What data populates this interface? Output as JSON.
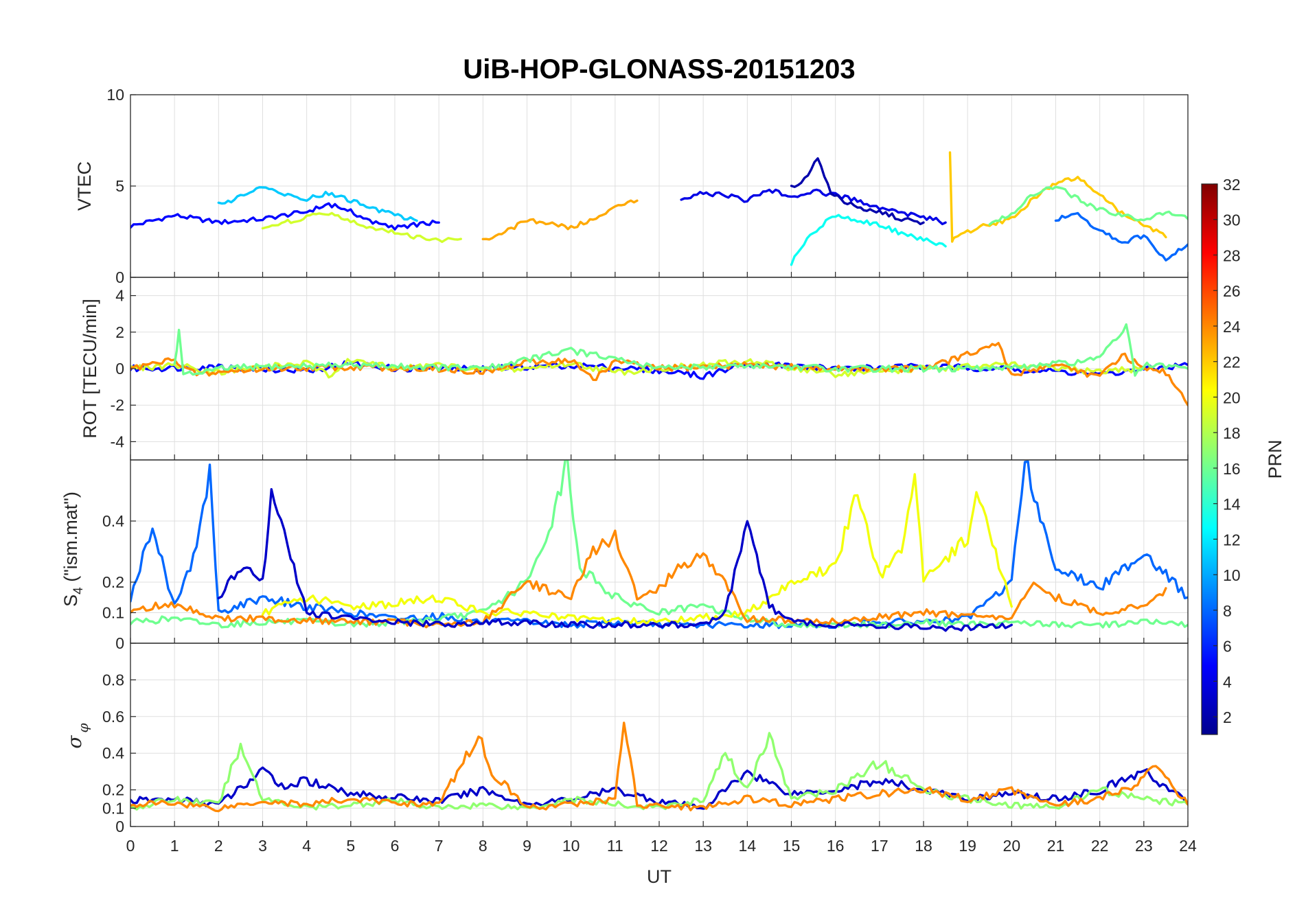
{
  "chart_data": {
    "type": "line",
    "title": "UiB-HOP-GLONASS-20151203",
    "xlabel": "UT",
    "xlim": [
      0,
      24
    ],
    "xticks": [
      "0",
      "1",
      "2",
      "3",
      "4",
      "5",
      "6",
      "7",
      "8",
      "9",
      "10",
      "11",
      "12",
      "13",
      "14",
      "15",
      "16",
      "17",
      "18",
      "19",
      "20",
      "21",
      "22",
      "23",
      "24"
    ],
    "grid": true,
    "colorbar": {
      "label": "PRN",
      "range": [
        1,
        32
      ],
      "ticks": [
        "2",
        "4",
        "6",
        "8",
        "10",
        "12",
        "14",
        "16",
        "18",
        "20",
        "22",
        "24",
        "26",
        "28",
        "30",
        "32"
      ],
      "placement": "right"
    },
    "panels": [
      {
        "id": "vtec",
        "ylabel": "VTEC",
        "ylim": [
          0,
          10
        ],
        "yticks": [
          "0",
          "5",
          "10"
        ],
        "series": [
          {
            "prn": 5,
            "t": [
              0,
              1,
              2,
              3,
              4,
              4.5,
              5,
              5.5,
              6,
              6.5,
              7
            ],
            "y": [
              2.8,
              3.4,
              3.0,
              3.2,
              3.6,
              4.0,
              3.6,
              3.0,
              2.7,
              2.9,
              3.0
            ]
          },
          {
            "prn": 11,
            "t": [
              2,
              2.5,
              3,
              3.5,
              4,
              4.5,
              5,
              5.5,
              6,
              6.5
            ],
            "y": [
              4.0,
              4.4,
              4.9,
              4.6,
              4.3,
              4.6,
              4.2,
              3.8,
              3.4,
              3.1
            ]
          },
          {
            "prn": 19,
            "t": [
              3,
              3.5,
              4,
              4.5,
              5,
              5.5,
              6,
              6.5,
              7,
              7.5
            ],
            "y": [
              2.6,
              3.0,
              3.3,
              3.5,
              3.1,
              2.7,
              2.5,
              2.2,
              2.0,
              2.1
            ]
          },
          {
            "prn": 23,
            "t": [
              8,
              8.5,
              9,
              9.5,
              10,
              10.5,
              11,
              11.5
            ],
            "y": [
              2.0,
              2.5,
              3.1,
              3.0,
              2.7,
              3.2,
              3.8,
              4.2
            ]
          },
          {
            "prn": 4,
            "t": [
              12.5,
              13,
              13.5,
              14,
              14.5,
              15,
              15.5,
              16,
              16.5,
              17,
              17.5,
              18,
              18.5
            ],
            "y": [
              4.3,
              4.6,
              4.5,
              4.2,
              4.8,
              4.4,
              4.7,
              4.5,
              4.2,
              3.8,
              3.5,
              3.3,
              3.0
            ]
          },
          {
            "prn": 2,
            "t": [
              15,
              15.3,
              15.6,
              15.9,
              16.2,
              16.5,
              17,
              17.5,
              18
            ],
            "y": [
              4.9,
              5.4,
              6.5,
              4.6,
              4.2,
              3.8,
              3.6,
              3.2,
              3.0
            ]
          },
          {
            "prn": 13,
            "t": [
              15,
              15.5,
              16,
              16.5,
              17,
              17.5,
              18,
              18.5
            ],
            "y": [
              0.8,
              2.5,
              3.4,
              3.1,
              2.9,
              2.4,
              2.1,
              1.7
            ]
          },
          {
            "prn": 22,
            "t": [
              18.6,
              18.65,
              18.7,
              19,
              19.5,
              20,
              20.5,
              21,
              21.5,
              22,
              22.5,
              23,
              23.5
            ],
            "y": [
              6.8,
              2.0,
              2.2,
              2.5,
              2.9,
              3.2,
              4.3,
              5.2,
              5.5,
              4.5,
              3.5,
              2.9,
              2.2
            ]
          },
          {
            "prn": 16,
            "t": [
              19.5,
              20,
              20.5,
              21,
              21.5,
              22,
              22.5,
              23,
              23.5,
              24
            ],
            "y": [
              3.0,
              3.5,
              4.6,
              5.0,
              4.3,
              3.7,
              3.4,
              3.1,
              3.6,
              3.2
            ]
          },
          {
            "prn": 8,
            "t": [
              21,
              21.5,
              22,
              22.5,
              23,
              23.5,
              24
            ],
            "y": [
              3.2,
              3.4,
              2.6,
              1.9,
              2.3,
              1.0,
              1.8
            ]
          }
        ]
      },
      {
        "id": "rot",
        "ylabel": "ROT [TECU/min]",
        "ylim": [
          -5,
          5
        ],
        "yticks": [
          "-4",
          "-2",
          "0",
          "2",
          "4"
        ],
        "series": [
          {
            "prn": 5,
            "t": [
              0,
              2,
              4,
              5,
              6,
              8,
              10,
              12,
              13,
              14,
              16,
              18,
              20,
              22,
              24
            ],
            "y": [
              0,
              0.1,
              -0.1,
              0.3,
              0,
              0,
              0.2,
              -0.1,
              -0.4,
              0.3,
              0,
              0.1,
              0,
              -0.3,
              0.2
            ]
          },
          {
            "prn": 19,
            "t": [
              0,
              1,
              2,
              3,
              4,
              4.5,
              5,
              6,
              7,
              8,
              9,
              10,
              11,
              12,
              14,
              16,
              18,
              20,
              22,
              23
            ],
            "y": [
              0,
              0.2,
              -0.2,
              0.1,
              0.3,
              -0.4,
              0.5,
              0,
              0.2,
              -0.1,
              0,
              0.3,
              -0.2,
              0,
              0.4,
              -0.3,
              0,
              0.2,
              -0.2,
              0
            ]
          },
          {
            "prn": 24,
            "t": [
              0,
              1,
              1.5,
              3,
              5,
              7,
              8,
              9,
              10,
              10.5,
              11,
              12,
              14,
              16,
              18,
              19.7,
              20,
              21,
              22,
              22.5,
              23,
              23.5,
              24
            ],
            "y": [
              0,
              0.5,
              -0.3,
              0,
              0.1,
              0,
              -0.2,
              0.3,
              0.5,
              -0.6,
              0.4,
              0,
              0.2,
              0,
              0,
              1.3,
              -0.4,
              0.3,
              -0.5,
              0.8,
              0,
              -0.2,
              -2.0
            ]
          },
          {
            "prn": 16,
            "t": [
              1,
              1.1,
              1.2,
              2,
              3,
              5,
              8,
              10,
              12,
              14,
              16,
              18,
              20,
              22,
              22.6,
              22.8,
              23,
              24
            ],
            "y": [
              0.3,
              2.0,
              -0.4,
              0,
              0.1,
              0.2,
              0,
              1.0,
              0,
              0.2,
              0,
              0,
              0,
              0.5,
              2.4,
              -0.3,
              0.2,
              0
            ]
          }
        ]
      },
      {
        "id": "s4",
        "ylabel": "S_4 (\"ism.mat\")",
        "ylabel_text": "S",
        "ylabel_sub": "4",
        "ylabel_rest": " (\"ism.mat\")",
        "ylim": [
          0,
          0.6
        ],
        "yticks": [
          "0",
          "0.1",
          "0.2",
          "0.4"
        ],
        "series": [
          {
            "prn": 8,
            "t": [
              0,
              0.5,
              1,
              1.5,
              1.8,
              2,
              3,
              4,
              5,
              6,
              7,
              8,
              9,
              10,
              11,
              12,
              13,
              14,
              15,
              16,
              17,
              18,
              19,
              20,
              20.3,
              21,
              22,
              23,
              24
            ],
            "y": [
              0.15,
              0.38,
              0.12,
              0.3,
              0.57,
              0.1,
              0.15,
              0.12,
              0.1,
              0.08,
              0.09,
              0.07,
              0.07,
              0.06,
              0.07,
              0.06,
              0.06,
              0.06,
              0.06,
              0.06,
              0.07,
              0.07,
              0.08,
              0.2,
              0.6,
              0.25,
              0.18,
              0.3,
              0.15
            ]
          },
          {
            "prn": 16,
            "t": [
              0,
              1,
              2,
              3,
              4,
              5,
              6,
              7,
              8,
              9,
              9.5,
              9.9,
              10.2,
              11,
              12,
              13,
              14,
              15,
              16,
              17,
              18,
              19,
              20,
              21,
              22,
              23,
              24
            ],
            "y": [
              0.07,
              0.08,
              0.06,
              0.07,
              0.07,
              0.06,
              0.07,
              0.08,
              0.1,
              0.2,
              0.35,
              0.6,
              0.25,
              0.15,
              0.1,
              0.12,
              0.08,
              0.06,
              0.06,
              0.06,
              0.07,
              0.06,
              0.07,
              0.06,
              0.06,
              0.07,
              0.06
            ]
          },
          {
            "prn": 20,
            "t": [
              3,
              4,
              5,
              6,
              7,
              8,
              9,
              10,
              12,
              14,
              15,
              16,
              16.5,
              17,
              17.5,
              17.8,
              18,
              19,
              19.2,
              20
            ],
            "y": [
              0.1,
              0.15,
              0.12,
              0.13,
              0.15,
              0.1,
              0.1,
              0.08,
              0.07,
              0.1,
              0.2,
              0.25,
              0.5,
              0.22,
              0.3,
              0.58,
              0.2,
              0.35,
              0.5,
              0.12
            ]
          },
          {
            "prn": 24,
            "t": [
              0,
              0.5,
              1,
              2,
              3,
              5,
              6,
              7,
              8,
              9,
              10,
              10.5,
              11,
              11.5,
              12,
              12.5,
              13,
              14,
              16,
              18,
              20,
              20.5,
              21,
              22,
              23,
              23.5
            ],
            "y": [
              0.1,
              0.12,
              0.13,
              0.08,
              0.08,
              0.07,
              0.07,
              0.06,
              0.07,
              0.2,
              0.15,
              0.3,
              0.35,
              0.15,
              0.18,
              0.25,
              0.3,
              0.08,
              0.07,
              0.1,
              0.08,
              0.2,
              0.15,
              0.1,
              0.12,
              0.18
            ]
          },
          {
            "prn": 3,
            "t": [
              2,
              2.5,
              3,
              3.2,
              4,
              5,
              6,
              7,
              8,
              10,
              12,
              13,
              13.5,
              14,
              14.5,
              15,
              16,
              17,
              18,
              19,
              20
            ],
            "y": [
              0.15,
              0.25,
              0.2,
              0.5,
              0.1,
              0.08,
              0.07,
              0.06,
              0.07,
              0.06,
              0.06,
              0.06,
              0.1,
              0.4,
              0.12,
              0.07,
              0.06,
              0.06,
              0.05,
              0.05,
              0.06
            ]
          }
        ]
      },
      {
        "id": "sigma",
        "ylabel": "σ_φ",
        "ylabel_text": "σ",
        "ylabel_sub": "φ",
        "ylim": [
          0,
          1
        ],
        "yticks": [
          "0",
          "0.1",
          "0.2",
          "0.4",
          "0.6",
          "0.8"
        ],
        "series": [
          {
            "prn": 3,
            "t": [
              0,
              1,
              2,
              3,
              3.5,
              4,
              4.5,
              5,
              6,
              7,
              8,
              9,
              10,
              11,
              12,
              13,
              14,
              15,
              16,
              17,
              18,
              19,
              20,
              21,
              22,
              23,
              24
            ],
            "y": [
              0.14,
              0.15,
              0.12,
              0.3,
              0.22,
              0.25,
              0.22,
              0.18,
              0.16,
              0.14,
              0.2,
              0.12,
              0.15,
              0.2,
              0.14,
              0.1,
              0.3,
              0.18,
              0.2,
              0.25,
              0.2,
              0.15,
              0.18,
              0.15,
              0.2,
              0.3,
              0.13
            ]
          },
          {
            "prn": 17,
            "t": [
              0,
              1,
              2,
              2.5,
              3,
              4,
              5,
              6,
              7,
              8,
              9,
              10,
              11,
              12,
              13,
              13.5,
              14,
              14.5,
              15,
              16,
              17,
              18,
              19,
              20,
              21,
              22,
              23,
              24
            ],
            "y": [
              0.1,
              0.15,
              0.12,
              0.45,
              0.15,
              0.1,
              0.12,
              0.14,
              0.1,
              0.12,
              0.1,
              0.15,
              0.12,
              0.1,
              0.15,
              0.4,
              0.2,
              0.5,
              0.15,
              0.2,
              0.35,
              0.2,
              0.15,
              0.12,
              0.1,
              0.2,
              0.15,
              0.12
            ]
          },
          {
            "prn": 24,
            "t": [
              0,
              1,
              2,
              3,
              4,
              5,
              6,
              7,
              7.9,
              8.2,
              9,
              10,
              11,
              11.2,
              11.5,
              12,
              13,
              14,
              15,
              16,
              17,
              18,
              19,
              20,
              21,
              22,
              23,
              23.2,
              24
            ],
            "y": [
              0.12,
              0.13,
              0.1,
              0.14,
              0.12,
              0.15,
              0.13,
              0.12,
              0.5,
              0.3,
              0.1,
              0.12,
              0.15,
              0.58,
              0.12,
              0.12,
              0.1,
              0.15,
              0.12,
              0.15,
              0.18,
              0.2,
              0.15,
              0.2,
              0.12,
              0.15,
              0.25,
              0.35,
              0.12
            ]
          }
        ]
      }
    ]
  }
}
